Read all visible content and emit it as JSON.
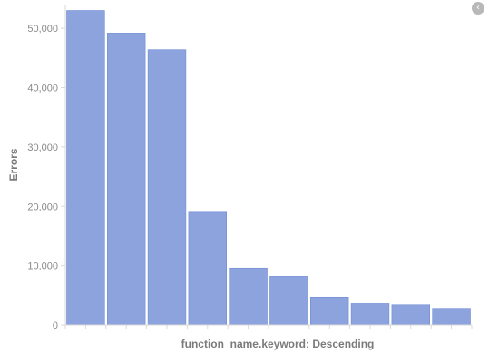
{
  "chart_data": {
    "type": "bar",
    "xlabel": "function_name.keyword: Descending",
    "ylabel": "Errors",
    "ylim": [
      0,
      54000
    ],
    "yticks": [
      0,
      10000,
      20000,
      30000,
      40000,
      50000
    ],
    "ytick_labels": [
      "0",
      "10,000",
      "20,000",
      "30,000",
      "40,000",
      "50,000"
    ],
    "categories": [
      "",
      "",
      "",
      "",
      "",
      "",
      "",
      "",
      "",
      ""
    ],
    "values": [
      53000,
      49200,
      46400,
      19000,
      9600,
      8200,
      4700,
      3600,
      3400,
      2800
    ],
    "colors": {
      "bar": "#8ca3dd",
      "bar_border": "#ffffff",
      "axis": "#d9d9d9"
    },
    "legend": "none",
    "grid": false
  },
  "controls": {
    "collapse_icon": "chevron-left-icon"
  }
}
